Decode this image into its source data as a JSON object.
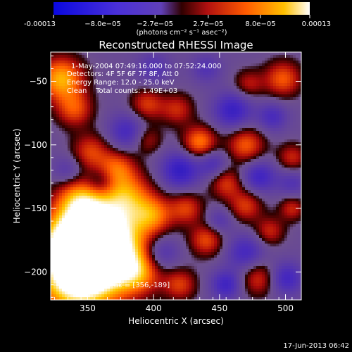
{
  "chart_data": {
    "type": "heatmap",
    "title": "Reconstructed RHESSI Image",
    "xlabel": "Heliocentric X (arcsec)",
    "ylabel": "Heliocentric Y (arcsec)",
    "xlim": [
      322,
      512
    ],
    "ylim": [
      -222,
      -27
    ],
    "x_ticks": [
      350,
      400,
      450,
      500
    ],
    "y_ticks": [
      -50,
      -100,
      -150,
      -200
    ],
    "colorbar": {
      "ticks": [
        {
          "value": -0.00013,
          "label": "-0.00013"
        },
        {
          "value": -8e-05,
          "label": "−8.0e−05"
        },
        {
          "value": -2.7e-05,
          "label": "−2.7e−05"
        },
        {
          "value": 2.7e-05,
          "label": "2.7e−05"
        },
        {
          "value": 8e-05,
          "label": "8.0e−05"
        },
        {
          "value": 0.00013,
          "label": "0.00013"
        }
      ],
      "range": [
        -0.00013,
        0.00013
      ],
      "colors": [
        "#0000c8",
        "#5a3cbe",
        "#a01e1e",
        "#ff6a00",
        "#ffffff"
      ]
    },
    "annotations": [
      "1-May-2004 07:49:16.000 to 07:52:24.000",
      "Detectors: 4F 5F 6F 7F 8F, Att 0",
      "Energy Range: 12.0 - 25.0 keV",
      "Clean    Total counts: 1.49E+03"
    ],
    "peak_label": "Position of Peak = [356,-189]",
    "blobs": [
      {
        "x": 356,
        "y": -189,
        "v": 1.0,
        "r": 22
      },
      {
        "x": 340,
        "y": -205,
        "v": 0.95,
        "r": 20
      },
      {
        "x": 365,
        "y": -170,
        "v": 0.85,
        "r": 22
      },
      {
        "x": 335,
        "y": -175,
        "v": 0.7,
        "r": 15
      },
      {
        "x": 345,
        "y": -145,
        "v": 0.7,
        "r": 13
      },
      {
        "x": 380,
        "y": -140,
        "v": 0.55,
        "r": 13
      },
      {
        "x": 372,
        "y": -118,
        "v": 0.5,
        "r": 10
      },
      {
        "x": 352,
        "y": -105,
        "v": 0.45,
        "r": 10
      },
      {
        "x": 388,
        "y": -200,
        "v": 0.55,
        "r": 12
      },
      {
        "x": 330,
        "y": -48,
        "v": 0.8,
        "r": 12
      },
      {
        "x": 340,
        "y": -72,
        "v": 0.5,
        "r": 10
      },
      {
        "x": 395,
        "y": -68,
        "v": 0.45,
        "r": 9
      },
      {
        "x": 418,
        "y": -72,
        "v": 0.4,
        "r": 9
      },
      {
        "x": 435,
        "y": -98,
        "v": 0.65,
        "r": 9
      },
      {
        "x": 470,
        "y": -100,
        "v": 0.55,
        "r": 10
      },
      {
        "x": 498,
        "y": -48,
        "v": 0.55,
        "r": 10
      },
      {
        "x": 472,
        "y": -52,
        "v": 0.35,
        "r": 8
      },
      {
        "x": 400,
        "y": -155,
        "v": 0.5,
        "r": 10
      },
      {
        "x": 425,
        "y": -150,
        "v": 0.45,
        "r": 9
      },
      {
        "x": 455,
        "y": -130,
        "v": 0.45,
        "r": 9
      },
      {
        "x": 470,
        "y": -148,
        "v": 0.45,
        "r": 9
      },
      {
        "x": 440,
        "y": -175,
        "v": 0.5,
        "r": 9
      },
      {
        "x": 488,
        "y": -168,
        "v": 0.4,
        "r": 8
      },
      {
        "x": 505,
        "y": -150,
        "v": 0.4,
        "r": 7
      },
      {
        "x": 505,
        "y": -110,
        "v": 0.4,
        "r": 8
      },
      {
        "x": 420,
        "y": -210,
        "v": 0.45,
        "r": 9
      },
      {
        "x": 480,
        "y": -205,
        "v": 0.45,
        "r": 10
      },
      {
        "x": 395,
        "y": -96,
        "v": 0.35,
        "r": 8
      },
      {
        "x": 460,
        "y": -73,
        "v": -0.55,
        "r": 10
      },
      {
        "x": 420,
        "y": -120,
        "v": -0.6,
        "r": 10
      },
      {
        "x": 445,
        "y": -115,
        "v": -0.4,
        "r": 8
      },
      {
        "x": 480,
        "y": -125,
        "v": -0.5,
        "r": 9
      },
      {
        "x": 405,
        "y": -185,
        "v": -0.45,
        "r": 10
      },
      {
        "x": 470,
        "y": -185,
        "v": -0.45,
        "r": 10
      },
      {
        "x": 455,
        "y": -210,
        "v": -0.5,
        "r": 8
      },
      {
        "x": 500,
        "y": -205,
        "v": -0.5,
        "r": 9
      },
      {
        "x": 380,
        "y": -90,
        "v": -0.45,
        "r": 10
      },
      {
        "x": 360,
        "y": -130,
        "v": -0.35,
        "r": 8
      },
      {
        "x": 490,
        "y": -78,
        "v": -0.4,
        "r": 8
      },
      {
        "x": 335,
        "y": -120,
        "v": -0.3,
        "r": 8
      },
      {
        "x": 400,
        "y": -40,
        "v": -0.3,
        "r": 9
      },
      {
        "x": 440,
        "y": -40,
        "v": -0.3,
        "r": 8
      },
      {
        "x": 505,
        "y": -130,
        "v": -0.3,
        "r": 8
      },
      {
        "x": 450,
        "y": -160,
        "v": -0.3,
        "r": 7
      }
    ]
  },
  "colorbar_unit": "(photons cm⁻² s⁻¹ asec⁻²)",
  "footer_date": "17-Jun-2013 06:42"
}
